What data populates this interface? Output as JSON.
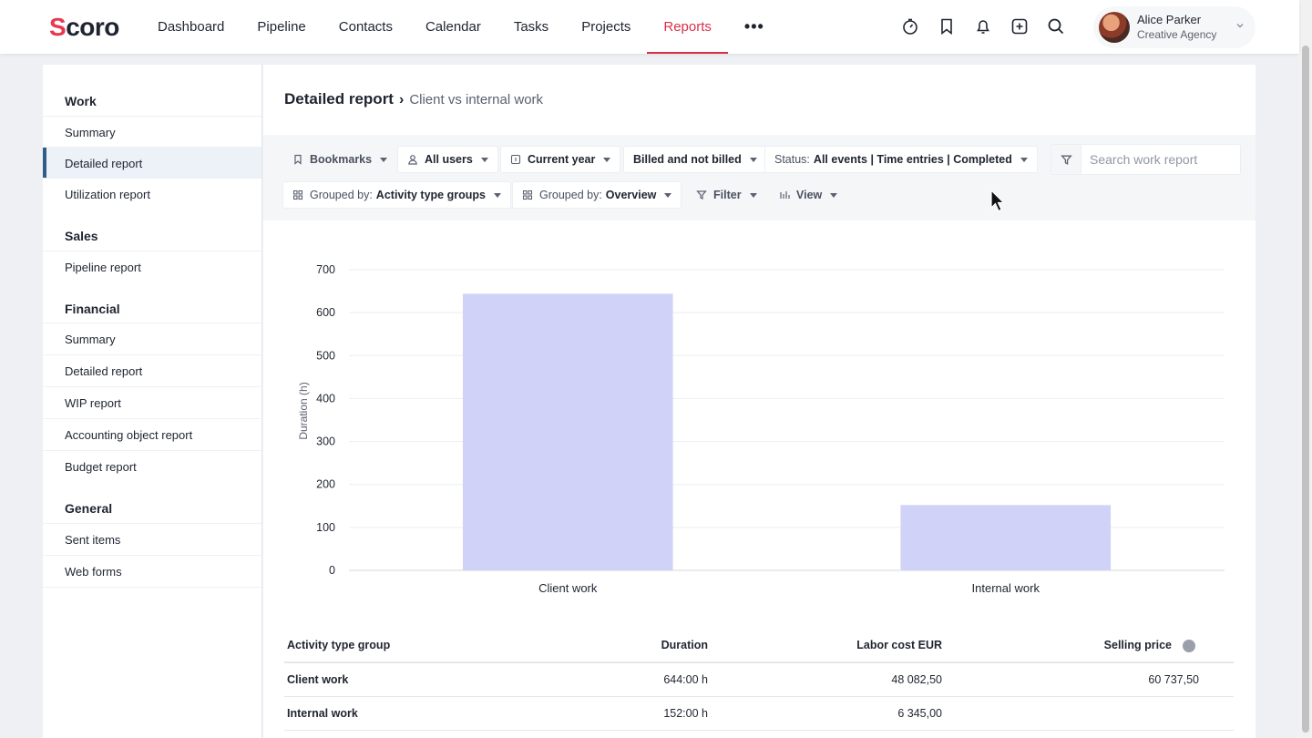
{
  "brand": {
    "logo_text": "Scoro",
    "accent": "#d9304a"
  },
  "nav": {
    "items": [
      "Dashboard",
      "Pipeline",
      "Contacts",
      "Calendar",
      "Tasks",
      "Projects",
      "Reports"
    ],
    "active": "Reports",
    "more": "•••",
    "icons": [
      "timer-icon",
      "bookmark-icon",
      "bell-icon",
      "add-icon",
      "search-icon"
    ]
  },
  "user": {
    "name": "Alice Parker",
    "company": "Creative Agency"
  },
  "sidebar": {
    "work": {
      "title": "Work",
      "items": [
        "Summary",
        "Detailed report",
        "Utilization report"
      ]
    },
    "sales": {
      "title": "Sales",
      "items": [
        "Pipeline report"
      ]
    },
    "financial": {
      "title": "Financial",
      "items": [
        "Summary",
        "Detailed report",
        "WIP report",
        "Accounting object report",
        "Budget report"
      ]
    },
    "general": {
      "title": "General",
      "items": [
        "Sent items",
        "Web forms"
      ]
    },
    "active": "Work / Detailed report"
  },
  "page": {
    "title": "Detailed report",
    "separator": "›",
    "subtitle": "Client vs internal work"
  },
  "filters": {
    "bookmarks": "Bookmarks",
    "users": "All users",
    "period": "Current year",
    "billing": "Billed and not billed",
    "status_label": "Status:",
    "status_value": "All events | Time entries | Completed",
    "group1_label": "Grouped by:",
    "group1_value": "Activity type groups",
    "group2_label": "Grouped by:",
    "group2_value": "Overview",
    "filter": "Filter",
    "view": "View",
    "search_placeholder": "Search work report"
  },
  "chart_data": {
    "type": "bar",
    "categories": [
      "Client work",
      "Internal work"
    ],
    "values": [
      644,
      152
    ],
    "title": "",
    "xlabel": "",
    "ylabel": "Duration (h)",
    "ylim": [
      0,
      700
    ],
    "yticks": [
      0,
      100,
      200,
      300,
      400,
      500,
      600,
      700
    ],
    "grid": true,
    "bar_color": "#d0d3f7"
  },
  "table": {
    "headers": [
      "Activity type group",
      "Duration",
      "Labor cost EUR",
      "Selling price"
    ],
    "help_icon": "?",
    "rows": [
      {
        "group": "Client work",
        "duration": "644:00 h",
        "labor_cost": "48 082,50",
        "selling_price": "60 737,50"
      },
      {
        "group": "Internal work",
        "duration": "152:00 h",
        "labor_cost": "6 345,00",
        "selling_price": ""
      }
    ]
  }
}
